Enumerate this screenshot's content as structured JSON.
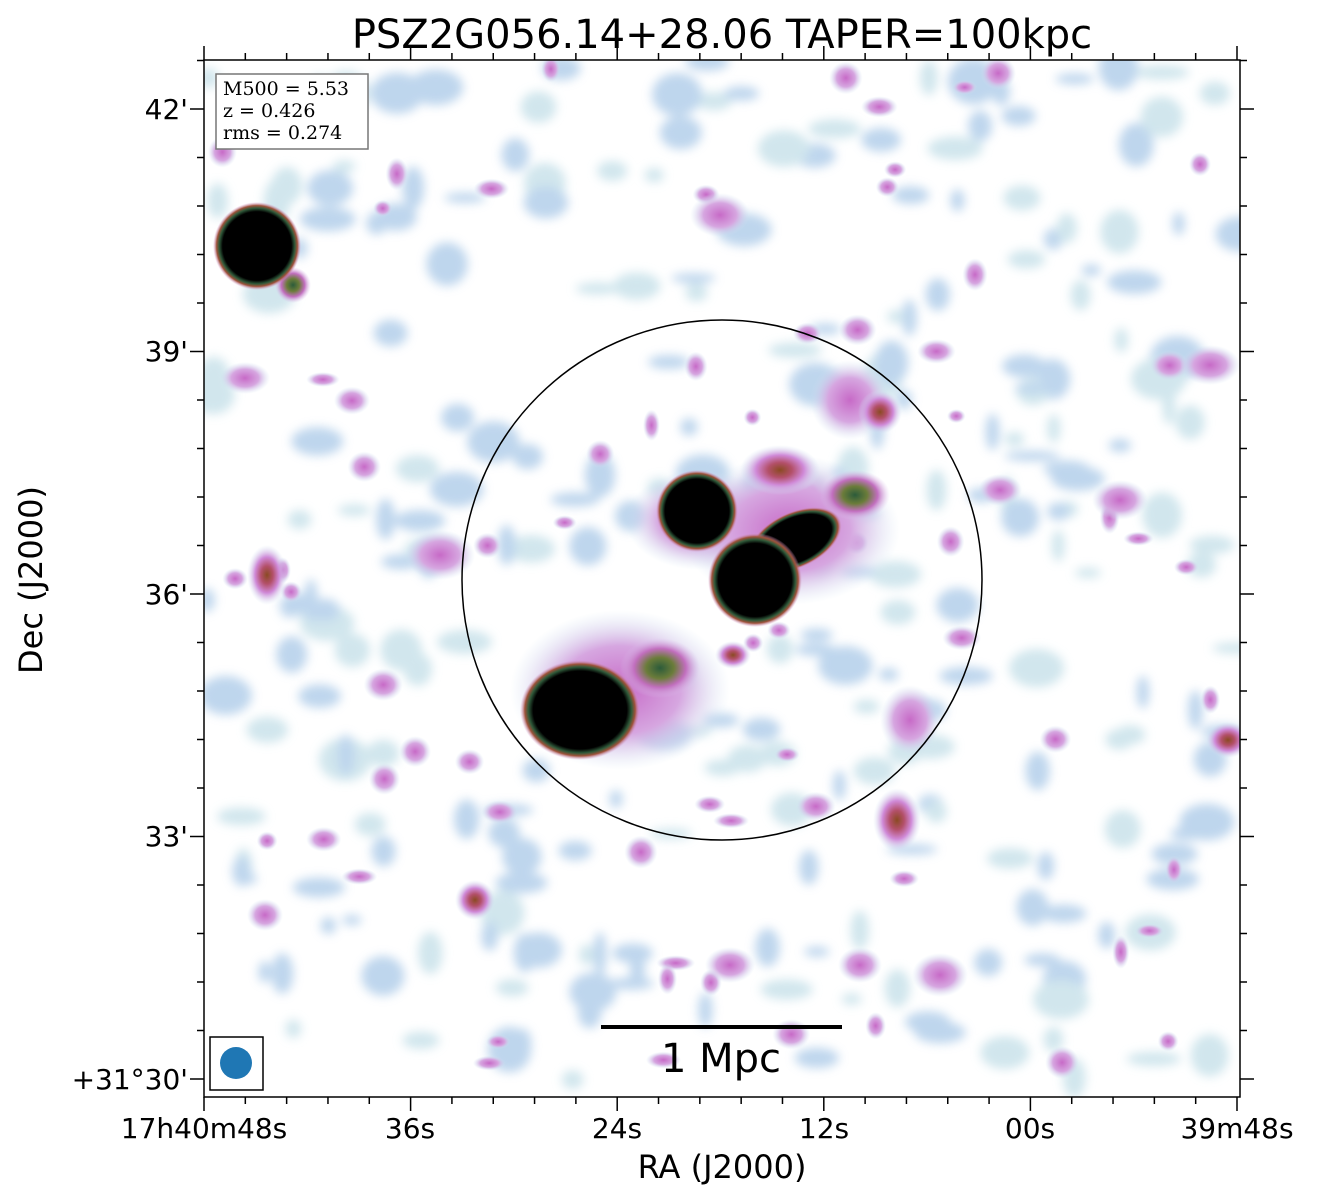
{
  "chart_data": {
    "type": "heatmap",
    "title": "PSZ2G056.14+28.06 TAPER=100kpc",
    "xlabel": "RA (J2000)",
    "ylabel": "Dec (J2000)",
    "x_ticks": [
      "17h40m48s",
      "36s",
      "24s",
      "12s",
      "00s",
      "39m48s"
    ],
    "y_ticks": [
      "+31°30'",
      "33'",
      "36'",
      "39'",
      "42'"
    ],
    "info_box": [
      "M500 = 5.53",
      "z = 0.426",
      "rms = 0.274"
    ],
    "scale_bar_label": "1 Mpc",
    "colormap": "cubehelix-like (white → light blue → violet → red → green → black)",
    "grid": false,
    "beam_color": "#1f77b4",
    "features": [
      {
        "name": "point source top-left",
        "ra": "17h40m47s",
        "dec": "+31°40.3'",
        "intensity": "saturated"
      },
      {
        "name": "central source NE",
        "ra": "17h40m20s",
        "dec": "+31°37.0'",
        "intensity": "saturated"
      },
      {
        "name": "central source",
        "ra": "17h40m15s",
        "dec": "+31°36.2'",
        "intensity": "saturated"
      },
      {
        "name": "central source SW",
        "ra": "17h40m26s",
        "dec": "+31°34.5'",
        "intensity": "saturated"
      }
    ]
  },
  "colors": {
    "circle": "#000000",
    "text": "#000000"
  }
}
